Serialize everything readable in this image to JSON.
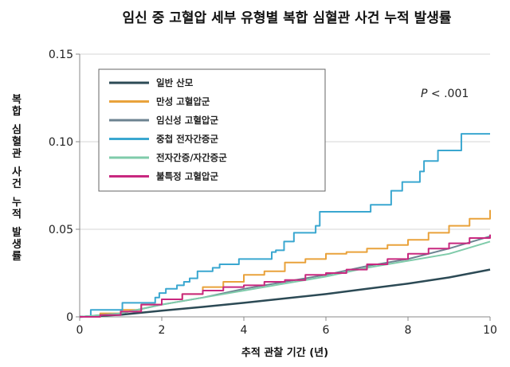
{
  "chart_data": {
    "type": "line",
    "title": "임신 중 고혈압 세부 유형별 복합 심혈관 사건 누적 발생률",
    "xlabel": "추적 관찰 기간 (년)",
    "ylabel": "복합 심혈관 사건 누적 발생률",
    "xlim": [
      0,
      10
    ],
    "ylim": [
      0,
      0.15
    ],
    "xticks": [
      "0",
      "2",
      "4",
      "6",
      "8",
      "10"
    ],
    "yticks": [
      "0",
      "0.05",
      "0.10",
      "0.15"
    ],
    "grid": "horizontal",
    "legend": "top-left",
    "annotation": {
      "italic": "P",
      "rest": " < .001"
    },
    "series": [
      {
        "name": "일반 산모",
        "color": "#2c4a55",
        "step": false,
        "x": [
          0,
          1,
          2,
          3,
          4,
          5,
          6,
          7,
          8,
          9,
          10
        ],
        "y": [
          0,
          0.0012,
          0.0035,
          0.0057,
          0.008,
          0.0105,
          0.013,
          0.016,
          0.019,
          0.0225,
          0.027
        ]
      },
      {
        "name": "만성 고혈압군",
        "color": "#e9a23b",
        "step": true,
        "x": [
          0,
          0.5,
          1,
          1.5,
          2,
          2.5,
          3,
          3.5,
          4,
          4.5,
          5,
          5.5,
          6,
          6.5,
          7,
          7.5,
          8,
          8.5,
          9,
          9.5,
          10
        ],
        "y": [
          0,
          0.002,
          0.004,
          0.007,
          0.01,
          0.013,
          0.017,
          0.02,
          0.024,
          0.026,
          0.031,
          0.033,
          0.036,
          0.037,
          0.039,
          0.041,
          0.044,
          0.048,
          0.052,
          0.056,
          0.061
        ]
      },
      {
        "name": "임신성 고혈압군",
        "color": "#6d8391",
        "step": false,
        "x": [
          0,
          1,
          2,
          3,
          4,
          5,
          6,
          7,
          8,
          9,
          10
        ],
        "y": [
          0,
          0.002,
          0.007,
          0.011,
          0.016,
          0.02,
          0.024,
          0.029,
          0.033,
          0.039,
          0.046
        ]
      },
      {
        "name": "중첩 전자간증군",
        "color": "#3aa7d0",
        "step": true,
        "x": [
          0,
          0.27,
          1.04,
          1.84,
          1.94,
          2.1,
          2.37,
          2.54,
          2.68,
          2.87,
          3.24,
          3.41,
          3.88,
          4.68,
          4.78,
          4.98,
          5.22,
          5.75,
          5.85,
          7.09,
          7.59,
          7.86,
          8.29,
          8.39,
          8.73,
          9.3,
          10
        ],
        "y": [
          0,
          0.004,
          0.008,
          0.011,
          0.0136,
          0.016,
          0.018,
          0.02,
          0.022,
          0.026,
          0.028,
          0.03,
          0.033,
          0.037,
          0.038,
          0.043,
          0.048,
          0.052,
          0.06,
          0.064,
          0.072,
          0.077,
          0.083,
          0.089,
          0.095,
          0.1045,
          0.1045
        ]
      },
      {
        "name": "전자간증/자간증군",
        "color": "#7fcbaa",
        "step": false,
        "x": [
          0,
          1,
          2,
          3,
          4,
          5,
          6,
          7,
          8,
          9,
          10
        ],
        "y": [
          0,
          0.002,
          0.007,
          0.011,
          0.015,
          0.019,
          0.023,
          0.028,
          0.032,
          0.036,
          0.043
        ]
      },
      {
        "name": "불특정 고혈압군",
        "color": "#c8287f",
        "step": true,
        "x": [
          0,
          0.5,
          1,
          1.5,
          2,
          2.5,
          3,
          3.5,
          4,
          4.5,
          5,
          5.5,
          6,
          6.5,
          7,
          7.5,
          8,
          8.5,
          9,
          9.5,
          10
        ],
        "y": [
          0,
          0.001,
          0.003,
          0.007,
          0.01,
          0.013,
          0.015,
          0.017,
          0.018,
          0.02,
          0.021,
          0.024,
          0.025,
          0.027,
          0.03,
          0.033,
          0.036,
          0.039,
          0.042,
          0.045,
          0.047
        ]
      }
    ]
  }
}
